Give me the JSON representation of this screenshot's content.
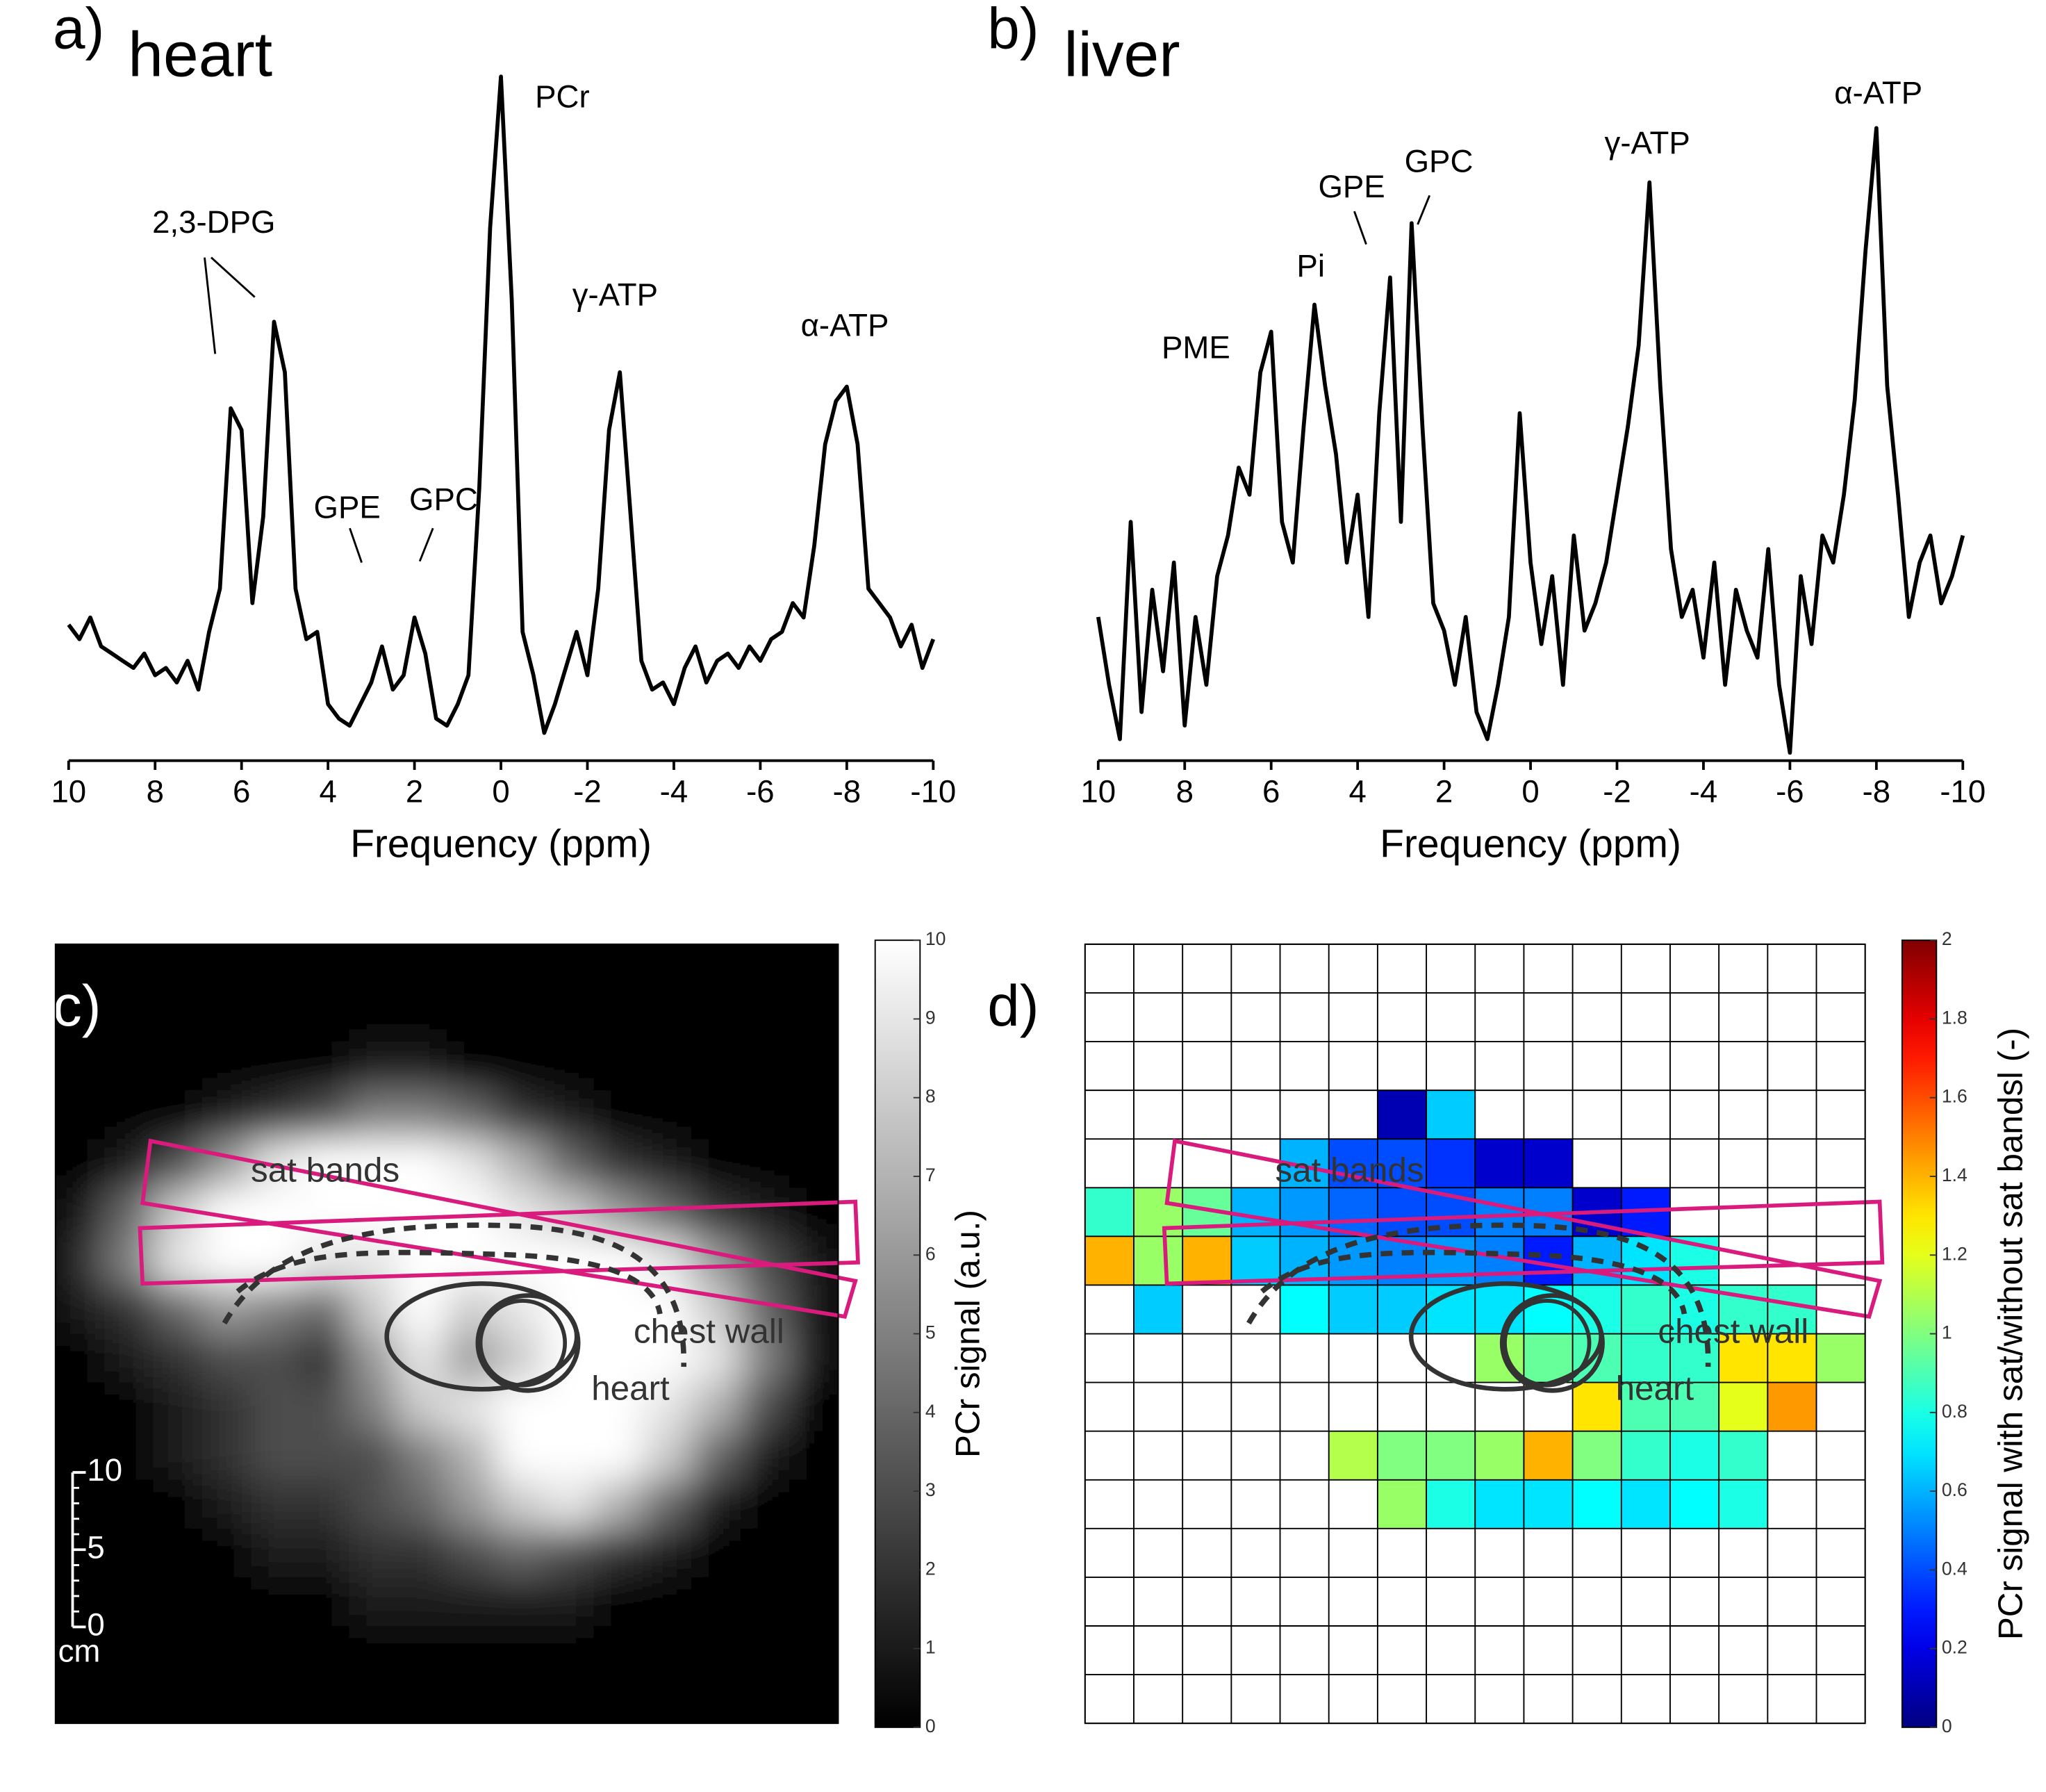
{
  "chart_data": [
    {
      "type": "line",
      "label": "a)",
      "title": "heart",
      "x_label": "Frequency (ppm)",
      "color": "#000000",
      "x": [
        10,
        9.75,
        9.5,
        9.25,
        9,
        8.75,
        8.5,
        8.25,
        8,
        7.75,
        7.5,
        7.25,
        7,
        6.75,
        6.5,
        6.25,
        6,
        5.75,
        5.5,
        5.25,
        5,
        4.75,
        4.5,
        4.25,
        4,
        3.75,
        3.5,
        3.25,
        3,
        2.75,
        2.5,
        2.25,
        2,
        1.75,
        1.5,
        1.25,
        1,
        0.75,
        0.5,
        0.25,
        0,
        -0.25,
        -0.5,
        -0.75,
        -1,
        -1.25,
        -1.5,
        -1.75,
        -2,
        -2.25,
        -2.5,
        -2.75,
        -3,
        -3.25,
        -3.5,
        -3.75,
        -4,
        -4.25,
        -4.5,
        -4.75,
        -5,
        -5.25,
        -5.5,
        -5.75,
        -6,
        -6.25,
        -6.5,
        -6.75,
        -7,
        -7.25,
        -7.5,
        -7.75,
        -8,
        -8.25,
        -8.5,
        -8.75,
        -9,
        -9.25,
        -9.5,
        -9.75,
        -10
      ],
      "values": [
        125,
        115,
        130,
        110,
        105,
        100,
        95,
        105,
        90,
        95,
        85,
        100,
        80,
        120,
        150,
        275,
        260,
        140,
        200,
        335,
        300,
        150,
        115,
        120,
        70,
        60,
        55,
        70,
        85,
        110,
        80,
        90,
        130,
        105,
        60,
        55,
        70,
        90,
        220,
        400,
        505,
        350,
        120,
        90,
        50,
        70,
        95,
        120,
        90,
        150,
        260,
        300,
        200,
        100,
        80,
        85,
        70,
        95,
        110,
        85,
        100,
        105,
        95,
        110,
        100,
        115,
        120,
        140,
        130,
        180,
        250,
        280,
        290,
        250,
        150,
        140,
        130,
        110,
        125,
        95,
        115
      ],
      "xlim": [
        10,
        -10
      ],
      "xticks": [
        10,
        8,
        6,
        4,
        2,
        0,
        -2,
        -4,
        -6,
        -8,
        -10
      ],
      "annotations": [
        "2,3-DPG",
        "GPE",
        "GPC",
        "PCr",
        "γ-ATP",
        "α-ATP"
      ]
    },
    {
      "type": "line",
      "label": "b)",
      "title": "liver",
      "x_label": "Frequency (ppm)",
      "color": "#000000",
      "x": [
        10,
        9.75,
        9.5,
        9.25,
        9,
        8.75,
        8.5,
        8.25,
        8,
        7.75,
        7.5,
        7.25,
        7,
        6.75,
        6.5,
        6.25,
        6,
        5.75,
        5.5,
        5.25,
        5,
        4.75,
        4.5,
        4.25,
        4,
        3.75,
        3.5,
        3.25,
        3,
        2.75,
        2.5,
        2.25,
        2,
        1.75,
        1.5,
        1.25,
        1,
        0.75,
        0.5,
        0.25,
        0,
        -0.25,
        -0.5,
        -0.75,
        -1,
        -1.25,
        -1.5,
        -1.75,
        -2,
        -2.25,
        -2.5,
        -2.75,
        -3,
        -3.25,
        -3.5,
        -3.75,
        -4,
        -4.25,
        -4.5,
        -4.75,
        -5,
        -5.25,
        -5.5,
        -5.75,
        -6,
        -6.25,
        -6.5,
        -6.75,
        -7,
        -7.25,
        -7.5,
        -7.75,
        -8,
        -8.25,
        -8.5,
        -8.75,
        -9,
        -9.25,
        -9.5,
        -9.75,
        -10
      ],
      "values": [
        110,
        60,
        20,
        180,
        40,
        130,
        70,
        150,
        30,
        110,
        60,
        140,
        170,
        220,
        200,
        290,
        320,
        180,
        150,
        250,
        340,
        280,
        230,
        150,
        200,
        110,
        260,
        360,
        180,
        400,
        250,
        120,
        100,
        60,
        110,
        40,
        20,
        60,
        110,
        260,
        150,
        90,
        140,
        60,
        170,
        100,
        120,
        150,
        200,
        250,
        310,
        430,
        280,
        160,
        110,
        130,
        80,
        150,
        60,
        130,
        100,
        80,
        160,
        60,
        10,
        140,
        90,
        170,
        150,
        200,
        270,
        380,
        470,
        280,
        200,
        110,
        150,
        170,
        120,
        140,
        170
      ],
      "xlim": [
        10,
        -10
      ],
      "xticks": [
        10,
        8,
        6,
        4,
        2,
        0,
        -2,
        -4,
        -6,
        -8,
        -10
      ],
      "annotations": [
        "PME",
        "Pi",
        "GPE",
        "GPC",
        "γ-ATP",
        "α-ATP"
      ]
    },
    {
      "type": "heatmap",
      "label": "c)",
      "colormap": "gray",
      "z_label": "PCr signal (a.u.)",
      "zlim": [
        0,
        10
      ],
      "zticks": [
        0,
        1,
        2,
        3,
        4,
        5,
        6,
        7,
        8,
        9,
        10
      ],
      "values": [
        [
          0,
          0,
          0,
          0,
          0,
          0,
          0,
          0,
          0,
          0,
          0,
          0,
          0,
          0,
          0,
          0
        ],
        [
          0,
          0,
          0,
          0,
          0,
          0,
          0,
          0,
          0,
          0,
          0,
          0,
          0,
          0,
          0,
          0
        ],
        [
          0,
          0,
          0,
          0,
          0,
          0,
          1,
          1,
          0,
          0,
          0,
          0,
          0,
          0,
          0,
          0
        ],
        [
          0,
          0,
          0,
          1,
          2,
          3,
          5,
          5,
          4,
          2,
          1,
          0,
          0,
          0,
          0,
          0
        ],
        [
          0,
          1,
          3,
          6,
          9,
          10,
          10,
          10,
          9,
          7,
          4,
          2,
          1,
          0,
          0,
          0
        ],
        [
          1,
          4,
          8,
          10,
          10,
          10,
          10,
          10,
          10,
          9,
          8,
          6,
          4,
          2,
          1,
          0
        ],
        [
          2,
          5,
          9,
          10,
          10,
          9,
          9,
          10,
          10,
          10,
          10,
          10,
          9,
          6,
          3,
          1
        ],
        [
          1,
          2,
          4,
          6,
          5,
          4,
          8,
          10,
          8,
          9,
          10,
          10,
          10,
          8,
          4,
          1
        ],
        [
          0,
          1,
          2,
          3,
          3,
          2,
          6,
          9,
          6,
          8,
          10,
          10,
          10,
          9,
          5,
          1
        ],
        [
          0,
          0,
          1,
          2,
          3,
          3,
          5,
          8,
          9,
          10,
          10,
          10,
          9,
          7,
          3,
          0
        ],
        [
          0,
          0,
          1,
          2,
          3,
          3,
          3,
          5,
          7,
          10,
          10,
          10,
          8,
          4,
          1,
          0
        ],
        [
          0,
          0,
          0,
          1,
          2,
          2,
          3,
          4,
          6,
          8,
          9,
          7,
          4,
          1,
          0,
          0
        ],
        [
          0,
          0,
          0,
          0,
          1,
          1,
          2,
          2,
          3,
          4,
          3,
          2,
          1,
          0,
          0,
          0
        ],
        [
          0,
          0,
          0,
          0,
          0,
          0,
          1,
          1,
          1,
          1,
          1,
          0,
          0,
          0,
          0,
          0
        ],
        [
          0,
          0,
          0,
          0,
          0,
          0,
          0,
          0,
          0,
          0,
          0,
          0,
          0,
          0,
          0,
          0
        ],
        [
          0,
          0,
          0,
          0,
          0,
          0,
          0,
          0,
          0,
          0,
          0,
          0,
          0,
          0,
          0,
          0
        ]
      ],
      "scale_bar": {
        "ticks": [
          10,
          5,
          0
        ],
        "unit": "cm"
      },
      "annotations": [
        "sat bands",
        "chest wall",
        "heart"
      ]
    },
    {
      "type": "heatmap",
      "label": "d)",
      "colormap": "jet",
      "z_label": "PCr signal with sat/without sat bandsl (-)",
      "zlim": [
        0,
        2
      ],
      "zticks": [
        0,
        0.2,
        0.4,
        0.6,
        0.8,
        1,
        1.2,
        1.4,
        1.6,
        1.8,
        2
      ],
      "values": [
        [
          null,
          null,
          null,
          null,
          null,
          null,
          null,
          null,
          null,
          null,
          null,
          null,
          null,
          null,
          null,
          null
        ],
        [
          null,
          null,
          null,
          null,
          null,
          null,
          null,
          null,
          null,
          null,
          null,
          null,
          null,
          null,
          null,
          null
        ],
        [
          null,
          null,
          null,
          null,
          null,
          null,
          null,
          null,
          null,
          null,
          null,
          null,
          null,
          null,
          null,
          null
        ],
        [
          null,
          null,
          null,
          null,
          null,
          null,
          0.1,
          0.65,
          null,
          null,
          null,
          null,
          null,
          null,
          null,
          null
        ],
        [
          null,
          null,
          null,
          null,
          0.6,
          0.4,
          0.4,
          0.35,
          0.15,
          0.15,
          null,
          null,
          null,
          null,
          null,
          null
        ],
        [
          0.85,
          1.05,
          0.95,
          0.6,
          0.55,
          0.45,
          0.4,
          0.4,
          0.5,
          0.5,
          0.15,
          0.3,
          null,
          null,
          null,
          null
        ],
        [
          1.4,
          1.05,
          1.4,
          0.65,
          0.6,
          0.55,
          0.5,
          0.55,
          0.5,
          0.3,
          0.6,
          0.7,
          0.8,
          null,
          null,
          null
        ],
        [
          null,
          0.65,
          null,
          null,
          0.75,
          0.65,
          0.65,
          0.7,
          0.7,
          0.75,
          0.8,
          0.85,
          0.8,
          0.85,
          0.85,
          null
        ],
        [
          null,
          null,
          null,
          null,
          null,
          null,
          null,
          null,
          1.05,
          0.95,
          0.9,
          0.85,
          0.85,
          1.3,
          1.3,
          1.05
        ],
        [
          null,
          null,
          null,
          null,
          null,
          null,
          null,
          null,
          null,
          null,
          1.3,
          0.9,
          0.9,
          1.2,
          1.45,
          null
        ],
        [
          null,
          null,
          null,
          null,
          null,
          1.1,
          1.0,
          1.0,
          1.05,
          1.4,
          1.0,
          0.85,
          0.8,
          0.85,
          null,
          null
        ],
        [
          null,
          null,
          null,
          null,
          null,
          null,
          1.05,
          0.8,
          0.7,
          0.7,
          0.75,
          0.7,
          0.75,
          0.8,
          null,
          null
        ],
        [
          null,
          null,
          null,
          null,
          null,
          null,
          null,
          null,
          null,
          null,
          null,
          null,
          null,
          null,
          null,
          null
        ],
        [
          null,
          null,
          null,
          null,
          null,
          null,
          null,
          null,
          null,
          null,
          null,
          null,
          null,
          null,
          null,
          null
        ],
        [
          null,
          null,
          null,
          null,
          null,
          null,
          null,
          null,
          null,
          null,
          null,
          null,
          null,
          null,
          null,
          null
        ],
        [
          null,
          null,
          null,
          null,
          null,
          null,
          null,
          null,
          null,
          null,
          null,
          null,
          null,
          null,
          null,
          null
        ]
      ],
      "annotations": [
        "sat bands",
        "chest wall",
        "heart"
      ]
    }
  ]
}
